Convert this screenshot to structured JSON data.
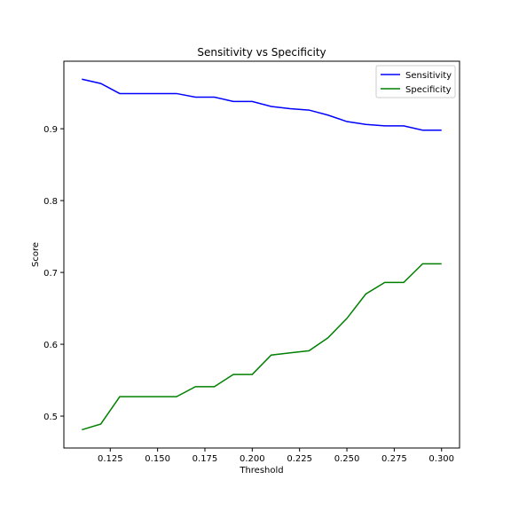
{
  "chart_data": {
    "type": "line",
    "title": "Sensitivity vs Specificity",
    "xlabel": "Threshold",
    "ylabel": "Score",
    "x": [
      0.11,
      0.12,
      0.13,
      0.14,
      0.15,
      0.16,
      0.17,
      0.18,
      0.19,
      0.2,
      0.21,
      0.22,
      0.23,
      0.24,
      0.25,
      0.26,
      0.27,
      0.28,
      0.29,
      0.3
    ],
    "series": [
      {
        "name": "Sensitivity",
        "color": "#0000ff",
        "values": [
          0.969,
          0.963,
          0.949,
          0.949,
          0.949,
          0.949,
          0.944,
          0.944,
          0.938,
          0.938,
          0.931,
          0.928,
          0.926,
          0.919,
          0.91,
          0.906,
          0.904,
          0.904,
          0.898,
          0.898
        ]
      },
      {
        "name": "Specificity",
        "color": "#008000",
        "values": [
          0.481,
          0.489,
          0.527,
          0.527,
          0.527,
          0.527,
          0.541,
          0.541,
          0.558,
          0.558,
          0.585,
          0.588,
          0.591,
          0.609,
          0.636,
          0.67,
          0.686,
          0.686,
          0.712,
          0.712
        ]
      }
    ],
    "xlim": [
      0.1005,
      0.3095
    ],
    "xticks": [
      {
        "value": 0.125,
        "label": "0.125"
      },
      {
        "value": 0.15,
        "label": "0.150"
      },
      {
        "value": 0.175,
        "label": "0.175"
      },
      {
        "value": 0.2,
        "label": "0.200"
      },
      {
        "value": 0.225,
        "label": "0.225"
      },
      {
        "value": 0.25,
        "label": "0.250"
      },
      {
        "value": 0.275,
        "label": "0.275"
      },
      {
        "value": 0.3,
        "label": "0.300"
      }
    ],
    "ylim": [
      0.4556,
      0.994
    ],
    "yticks": [
      0.5,
      0.6,
      0.7,
      0.8,
      0.9
    ],
    "legend": "upper right"
  }
}
